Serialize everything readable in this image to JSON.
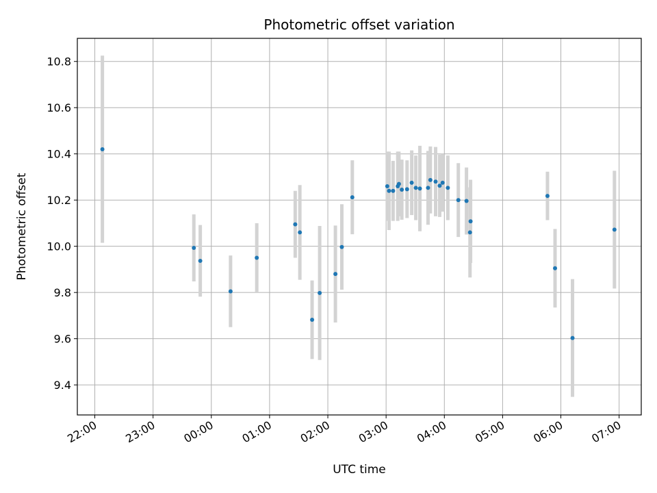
{
  "chart_data": {
    "type": "scatter",
    "title": "Photometric offset variation",
    "xlabel": "UTC time",
    "ylabel": "Photometric offset",
    "x_unit": "hours after 00:00 UTC (negative = previous day)",
    "xlim": [
      -2.3,
      7.38
    ],
    "ylim": [
      9.27,
      10.9
    ],
    "x_ticks": [
      -2,
      -1,
      0,
      1,
      2,
      3,
      4,
      5,
      6,
      7
    ],
    "x_tick_labels": [
      "22:00",
      "23:00",
      "00:00",
      "01:00",
      "02:00",
      "03:00",
      "04:00",
      "05:00",
      "06:00",
      "07:00"
    ],
    "y_ticks": [
      9.4,
      9.6,
      9.8,
      10.0,
      10.2,
      10.4,
      10.6,
      10.8
    ],
    "y_tick_labels": [
      "9.4",
      "9.6",
      "9.8",
      "10.0",
      "10.2",
      "10.4",
      "10.6",
      "10.8"
    ],
    "grid": true,
    "colors": {
      "point": "#1f77b4",
      "errorbar": "#d3d3d3",
      "grid": "#b0b0b0"
    },
    "series": [
      {
        "points": [
          {
            "x": -1.87,
            "y": 10.42,
            "err": 0.405
          },
          {
            "x": -0.3,
            "y": 9.993,
            "err": 0.145
          },
          {
            "x": -0.19,
            "y": 9.937,
            "err": 0.155
          },
          {
            "x": 0.33,
            "y": 9.805,
            "err": 0.155
          },
          {
            "x": 0.78,
            "y": 9.95,
            "err": 0.15
          },
          {
            "x": 1.44,
            "y": 10.095,
            "err": 0.145
          },
          {
            "x": 1.52,
            "y": 10.06,
            "err": 0.205
          },
          {
            "x": 1.73,
            "y": 9.682,
            "err": 0.17
          },
          {
            "x": 1.86,
            "y": 9.798,
            "err": 0.29
          },
          {
            "x": 2.13,
            "y": 9.88,
            "err": 0.21
          },
          {
            "x": 2.24,
            "y": 9.997,
            "err": 0.185
          },
          {
            "x": 2.42,
            "y": 10.212,
            "err": 0.16
          },
          {
            "x": 3.02,
            "y": 10.26,
            "err": 0.15
          },
          {
            "x": 3.05,
            "y": 10.24,
            "err": 0.17
          },
          {
            "x": 3.12,
            "y": 10.24,
            "err": 0.13
          },
          {
            "x": 3.2,
            "y": 10.26,
            "err": 0.15
          },
          {
            "x": 3.22,
            "y": 10.27,
            "err": 0.14
          },
          {
            "x": 3.27,
            "y": 10.245,
            "err": 0.13
          },
          {
            "x": 3.36,
            "y": 10.247,
            "err": 0.125
          },
          {
            "x": 3.44,
            "y": 10.275,
            "err": 0.14
          },
          {
            "x": 3.51,
            "y": 10.253,
            "err": 0.14
          },
          {
            "x": 3.58,
            "y": 10.25,
            "err": 0.185
          },
          {
            "x": 3.72,
            "y": 10.253,
            "err": 0.16
          },
          {
            "x": 3.76,
            "y": 10.287,
            "err": 0.145
          },
          {
            "x": 3.85,
            "y": 10.28,
            "err": 0.15
          },
          {
            "x": 3.92,
            "y": 10.262,
            "err": 0.135
          },
          {
            "x": 3.97,
            "y": 10.275,
            "err": 0.125
          },
          {
            "x": 4.06,
            "y": 10.253,
            "err": 0.14
          },
          {
            "x": 4.24,
            "y": 10.2,
            "err": 0.16
          },
          {
            "x": 4.38,
            "y": 10.196,
            "err": 0.145
          },
          {
            "x": 4.44,
            "y": 10.06,
            "err": 0.195
          },
          {
            "x": 4.45,
            "y": 10.108,
            "err": 0.18
          },
          {
            "x": 5.77,
            "y": 10.218,
            "err": 0.105
          },
          {
            "x": 5.9,
            "y": 9.905,
            "err": 0.17
          },
          {
            "x": 6.2,
            "y": 9.603,
            "err": 0.255
          },
          {
            "x": 6.92,
            "y": 10.072,
            "err": 0.255
          }
        ]
      }
    ]
  }
}
